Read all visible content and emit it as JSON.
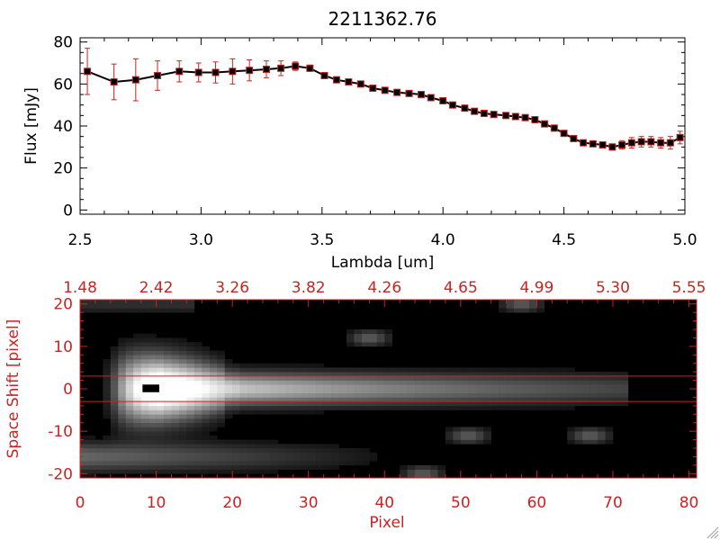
{
  "chart_data": [
    {
      "type": "line",
      "title": "2211362.76",
      "xlabel": "Lambda [um]",
      "ylabel": "Flux [mJy]",
      "xlim": [
        2.5,
        5.0
      ],
      "ylim": [
        -2,
        82
      ],
      "x_ticks": [
        "2.5",
        "3.0",
        "3.5",
        "4.0",
        "4.5",
        "5.0"
      ],
      "y_ticks": [
        "0",
        "20",
        "40",
        "60",
        "80"
      ],
      "grid": false,
      "colors": {
        "line": "#000000",
        "marker": "#000000",
        "error_bar": "#cc2222",
        "marker_edge": "#cc2222"
      },
      "series": [
        {
          "x": [
            2.53,
            2.64,
            2.73,
            2.82,
            2.91,
            2.99,
            3.06,
            3.13,
            3.2,
            3.27,
            3.33,
            3.39,
            3.45,
            3.51,
            3.56,
            3.61,
            3.66,
            3.71,
            3.76,
            3.81,
            3.86,
            3.91,
            3.95,
            4.0,
            4.04,
            4.09,
            4.13,
            4.17,
            4.21,
            4.26,
            4.3,
            4.34,
            4.38,
            4.42,
            4.46,
            4.5,
            4.54,
            4.58,
            4.62,
            4.66,
            4.7,
            4.74,
            4.78,
            4.82,
            4.86,
            4.9,
            4.94,
            4.98
          ],
          "y": [
            66,
            61,
            62,
            64,
            66,
            65.5,
            65.5,
            66,
            66.5,
            67,
            67.5,
            68.5,
            67.5,
            64,
            62,
            61,
            60,
            58,
            57,
            56,
            55.5,
            55,
            53.5,
            52,
            50,
            48.5,
            47,
            46,
            45.5,
            45,
            44.5,
            44,
            43,
            41,
            39,
            36.5,
            34,
            32,
            31.5,
            31,
            30,
            31,
            32,
            32.5,
            32.5,
            32,
            32,
            34.5
          ],
          "yerr": [
            11,
            8.5,
            10,
            7,
            5,
            4.5,
            5,
            6,
            5,
            4,
            3.5,
            2,
            1.5,
            1,
            1,
            1,
            1,
            1,
            1,
            1,
            1,
            1,
            1,
            1,
            1,
            1,
            1,
            1,
            1,
            1,
            1,
            1,
            1,
            1,
            1,
            1,
            1,
            1,
            1,
            1.5,
            1.5,
            2,
            2.5,
            2.5,
            2.5,
            2.5,
            3,
            3
          ]
        }
      ]
    },
    {
      "type": "heatmap",
      "xlabel": "Pixel",
      "ylabel": "Space Shift [pixel]",
      "xlim": [
        0,
        81
      ],
      "ylim": [
        -21,
        21
      ],
      "x_ticks": [
        "0",
        "10",
        "20",
        "30",
        "40",
        "50",
        "60",
        "70",
        "80"
      ],
      "y_ticks": [
        "-20",
        "-10",
        "0",
        "10",
        "20"
      ],
      "top_axis_label_values": [
        "1.48",
        "2.42",
        "3.26",
        "3.82",
        "4.26",
        "4.65",
        "4.99",
        "5.30",
        "5.55"
      ],
      "extraction_window": [
        -3,
        3
      ],
      "colormap": "grayscale",
      "colors": {
        "axis": "#cc2222",
        "window_lines": "#cc2222"
      },
      "features": [
        {
          "description": "bright trace",
          "x_range": [
            4,
            71
          ],
          "y_center": 0,
          "peak_x": 11
        },
        {
          "description": "faint trace",
          "x_range": [
            0,
            40
          ],
          "y_center": -16
        },
        {
          "description": "faint blob",
          "x": 38,
          "y": 12
        },
        {
          "description": "faint blob",
          "x": 58,
          "y": 20
        },
        {
          "description": "faint blob",
          "x": 45,
          "y": -20
        },
        {
          "description": "faint blob",
          "x": 51,
          "y": -11
        },
        {
          "description": "faint blob",
          "x": 67,
          "y": -11
        }
      ]
    }
  ]
}
